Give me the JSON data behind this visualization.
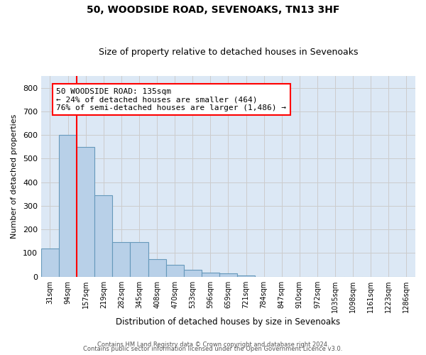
{
  "title1": "50, WOODSIDE ROAD, SEVENOAKS, TN13 3HF",
  "title2": "Size of property relative to detached houses in Sevenoaks",
  "xlabel": "Distribution of detached houses by size in Sevenoaks",
  "ylabel": "Number of detached properties",
  "categories": [
    "31sqm",
    "94sqm",
    "157sqm",
    "219sqm",
    "282sqm",
    "345sqm",
    "408sqm",
    "470sqm",
    "533sqm",
    "596sqm",
    "659sqm",
    "721sqm",
    "784sqm",
    "847sqm",
    "910sqm",
    "972sqm",
    "1035sqm",
    "1098sqm",
    "1161sqm",
    "1223sqm",
    "1286sqm"
  ],
  "values": [
    120,
    600,
    550,
    345,
    145,
    145,
    75,
    50,
    28,
    18,
    14,
    5,
    0,
    0,
    0,
    0,
    0,
    0,
    0,
    0,
    0
  ],
  "bar_color": "#b8d0e8",
  "bar_edge_color": "#6699bb",
  "annotation_text": "50 WOODSIDE ROAD: 135sqm\n← 24% of detached houses are smaller (464)\n76% of semi-detached houses are larger (1,486) →",
  "annotation_box_color": "white",
  "annotation_box_edge_color": "red",
  "vline_color": "red",
  "ylim": [
    0,
    850
  ],
  "yticks": [
    0,
    100,
    200,
    300,
    400,
    500,
    600,
    700,
    800
  ],
  "grid_color": "#cccccc",
  "background_color": "#dce8f5",
  "footer1": "Contains HM Land Registry data © Crown copyright and database right 2024.",
  "footer2": "Contains public sector information licensed under the Open Government Licence v3.0."
}
